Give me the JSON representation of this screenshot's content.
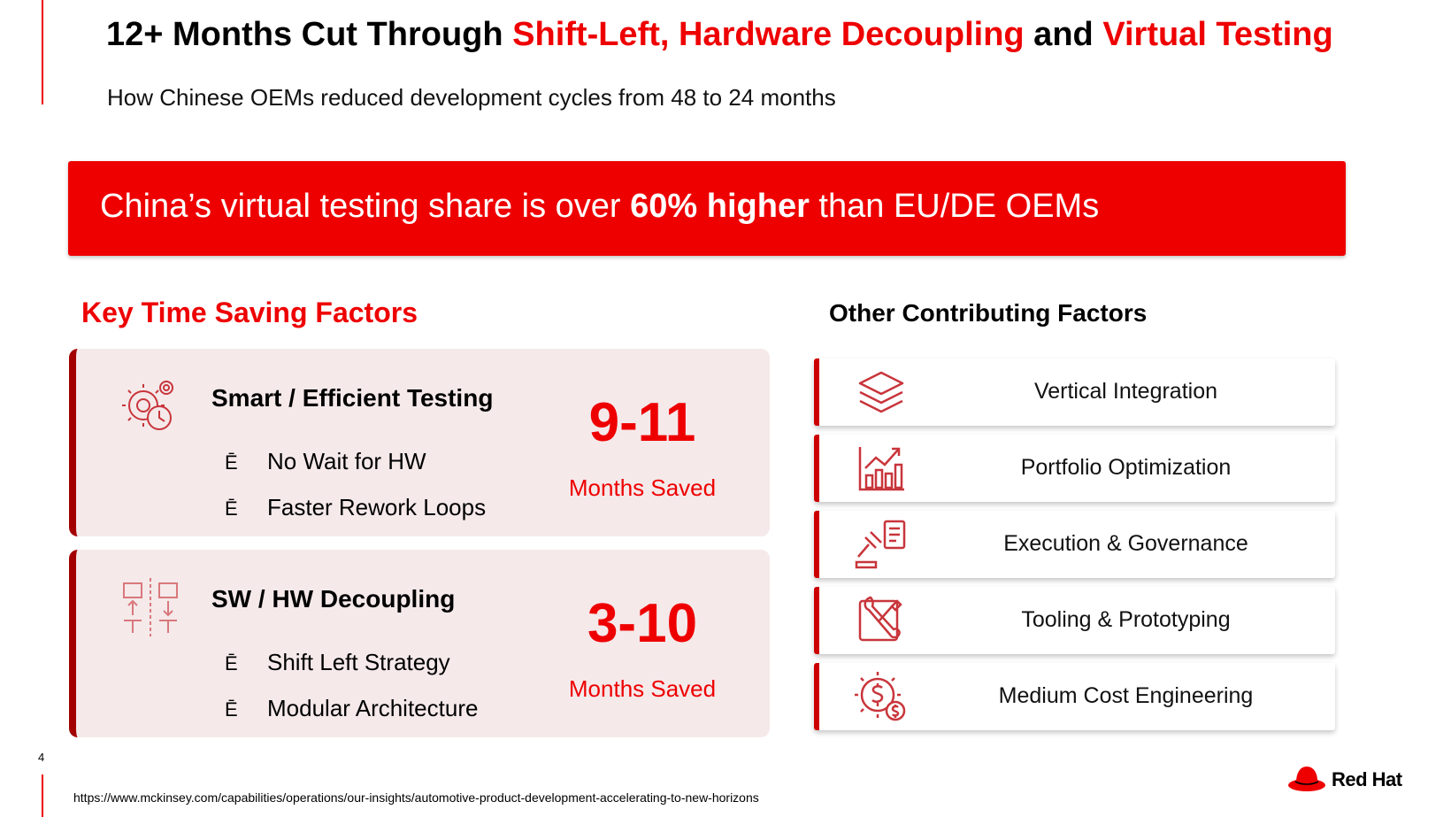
{
  "title": {
    "part1": "12+ Months Cut Through ",
    "part2": "Shift-Left, Hardware Decoupling",
    "part3": " and ",
    "part4": "Virtual Testing"
  },
  "subtitle": "How Chinese OEMs reduced development cycles from 48 to 24 months",
  "banner": {
    "pre": "China’s virtual testing share is over ",
    "bold": "60% higher",
    "post": " than EU/DE OEMs"
  },
  "key_heading": "Key Time Saving Factors",
  "other_heading": "Other Contributing Factors",
  "cards": [
    {
      "icon": "gears-clock-icon",
      "title": "Smart / Efficient Testing",
      "bullets": [
        "No Wait for HW",
        "Faster Rework Loops"
      ],
      "value": "9-11",
      "value_label": "Months Saved"
    },
    {
      "icon": "decoupling-diagram-icon",
      "title": "SW / HW Decoupling",
      "bullets": [
        "Shift Left Strategy",
        "Modular Architecture"
      ],
      "value": "3-10",
      "value_label": "Months Saved"
    }
  ],
  "bullet_mark": "Ē",
  "factors": [
    {
      "icon": "layers-icon",
      "label": "Vertical Integration"
    },
    {
      "icon": "bar-chart-growth-icon",
      "label": "Portfolio Optimization"
    },
    {
      "icon": "gavel-checklist-icon",
      "label": "Execution & Governance"
    },
    {
      "icon": "wrench-tools-icon",
      "label": "Tooling & Prototyping"
    },
    {
      "icon": "gear-dollar-icon",
      "label": "Medium Cost Engineering"
    }
  ],
  "page_number": "4",
  "source_url": "https://www.mckinsey.com/capabilities/operations/our-insights/automotive-product-development-accelerating-to-new-horizons",
  "logo_text": "Red Hat",
  "colors": {
    "accent": "#ee0000",
    "card_bg": "#f5e9ea",
    "card_border": "#a30000"
  }
}
